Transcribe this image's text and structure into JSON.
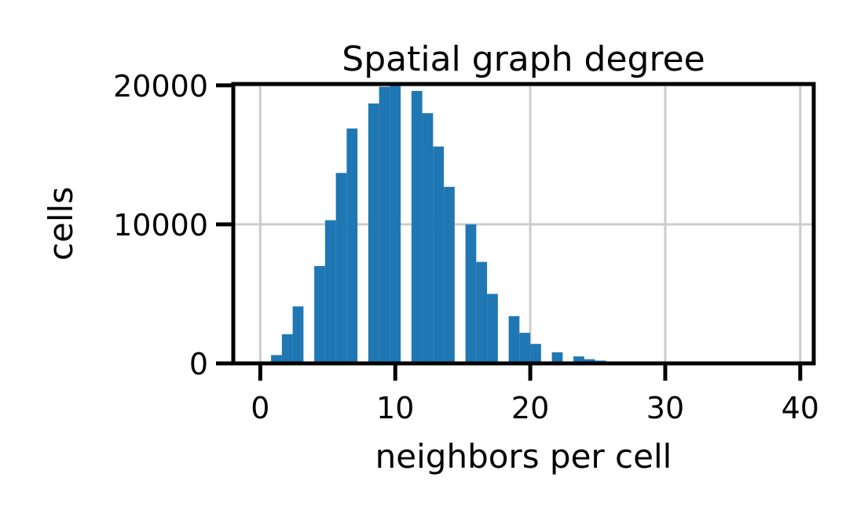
{
  "chart_data": {
    "type": "bar",
    "title": "Spatial graph degree",
    "xlabel": "neighbors per cell",
    "ylabel": "cells",
    "bin_edges_start": 0,
    "bin_width": 0.8,
    "bin_count": 50,
    "counts": [
      0,
      600,
      2100,
      4100,
      0,
      7000,
      10300,
      13700,
      16900,
      0,
      18700,
      19900,
      20200,
      0,
      19600,
      18000,
      15600,
      12700,
      0,
      10000,
      7300,
      5000,
      0,
      3400,
      2200,
      1400,
      0,
      800,
      0,
      500,
      300,
      200,
      0,
      100,
      50,
      30,
      0,
      20,
      10,
      5,
      0,
      0,
      0,
      0,
      0,
      0,
      0,
      0,
      0,
      0
    ],
    "xlim": [
      -2,
      41
    ],
    "ylim": [
      0,
      20100
    ],
    "xticks": [
      0,
      10,
      20,
      30,
      40
    ],
    "xtick_labels": [
      "0",
      "10",
      "20",
      "30",
      "40"
    ],
    "yticks": [
      0,
      10000,
      20000
    ],
    "ytick_labels": [
      "0",
      "10000",
      "20000"
    ],
    "grid": true,
    "bar_color": "#1f77b4"
  }
}
